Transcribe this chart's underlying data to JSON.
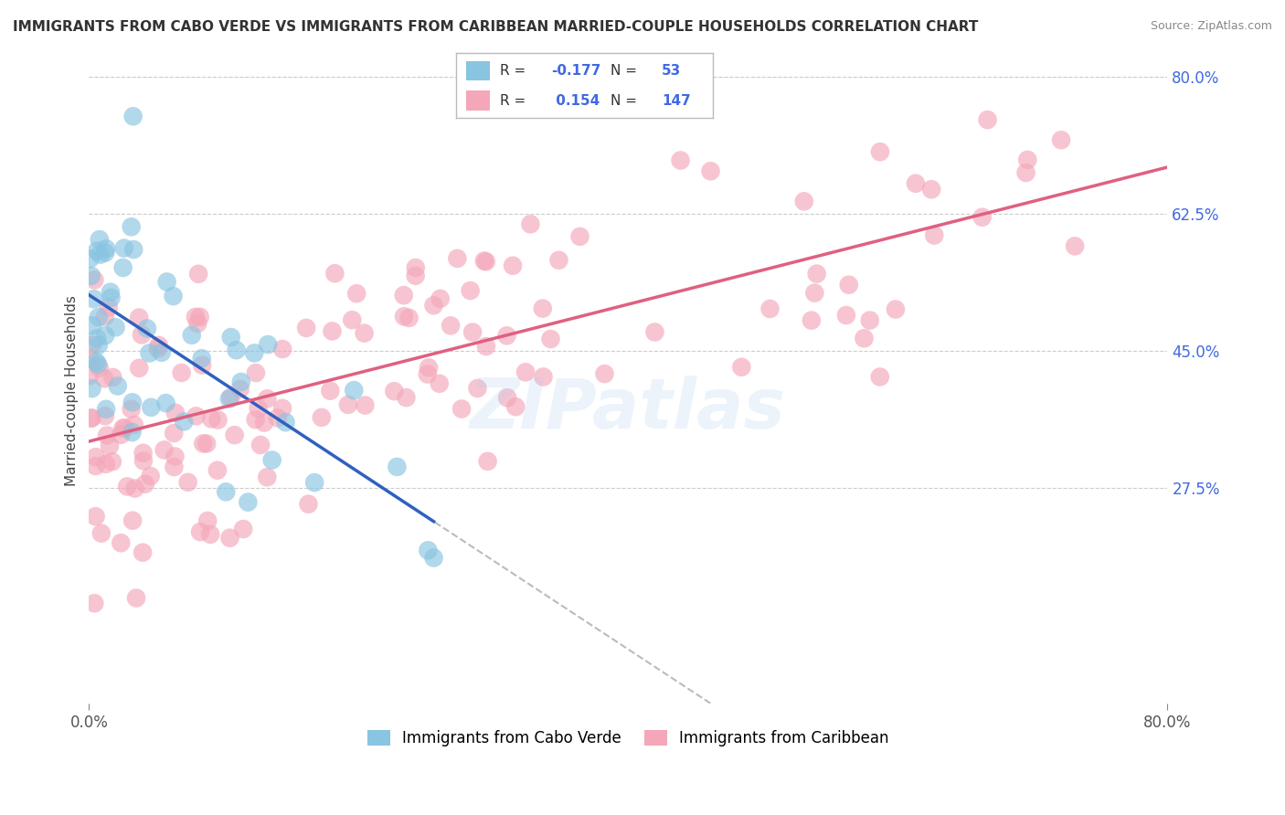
{
  "title": "IMMIGRANTS FROM CABO VERDE VS IMMIGRANTS FROM CARIBBEAN MARRIED-COUPLE HOUSEHOLDS CORRELATION CHART",
  "source": "Source: ZipAtlas.com",
  "ylabel": "Married-couple Households",
  "xlim": [
    0.0,
    0.8
  ],
  "ylim": [
    0.0,
    0.8
  ],
  "xtick_labels": [
    "0.0%",
    "80.0%"
  ],
  "ytick_labels_right": [
    "80.0%",
    "62.5%",
    "45.0%",
    "27.5%"
  ],
  "ytick_positions_right": [
    0.8,
    0.625,
    0.45,
    0.275
  ],
  "legend_label1": "Immigrants from Cabo Verde",
  "legend_label2": "Immigrants from Caribbean",
  "R1": -0.177,
  "N1": 53,
  "R2": 0.154,
  "N2": 147,
  "color1": "#89C4E1",
  "color2": "#F4A7B9",
  "line_color1": "#3060C0",
  "line_color2": "#E06080",
  "watermark": "ZIPatlas",
  "background_color": "#FFFFFF",
  "grid_color": "#CCCCCC"
}
